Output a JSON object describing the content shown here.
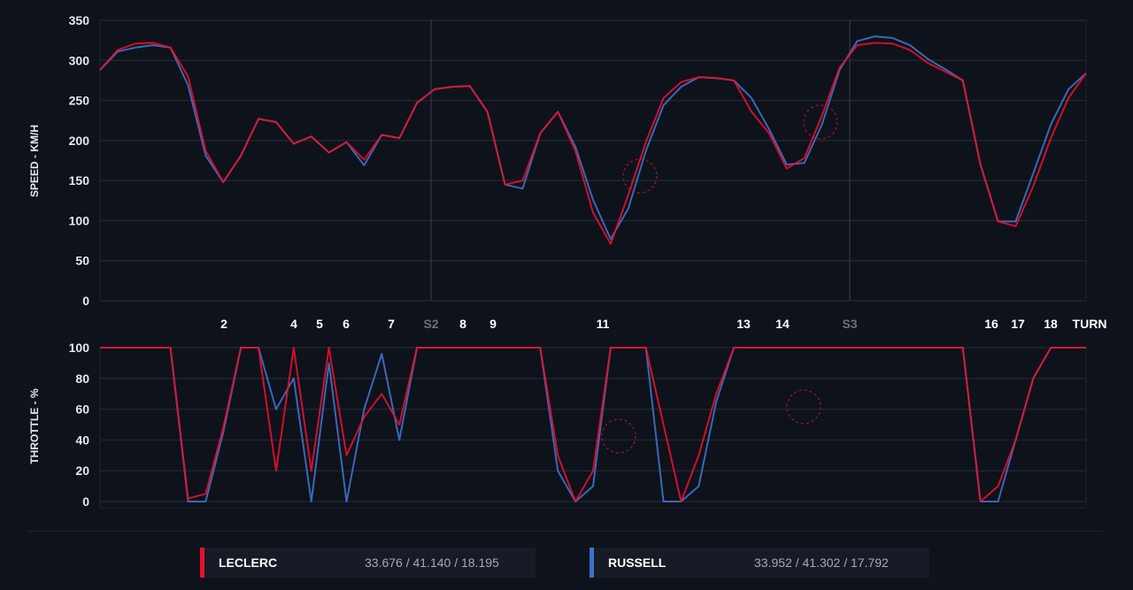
{
  "colors": {
    "leclerc": "#e8102e",
    "russell": "#3d72c9",
    "background": "#0e121b",
    "grid": "#1f2431"
  },
  "chart_data": [
    {
      "type": "line",
      "ylabel": "SPEED - KM/H",
      "ylim": [
        0,
        350
      ],
      "yticks": [
        0,
        50,
        100,
        150,
        200,
        250,
        300,
        350
      ],
      "grid": true,
      "series": [
        {
          "name": "LECLERC",
          "color": "#e8102e",
          "values": [
            288,
            313,
            321,
            322,
            316,
            280,
            187,
            148,
            181,
            227,
            223,
            196,
            205,
            185,
            198,
            176,
            207,
            203,
            247,
            264,
            267,
            268,
            236,
            145,
            150,
            209,
            236,
            187,
            110,
            71,
            132,
            198,
            253,
            273,
            279,
            278,
            275,
            236,
            209,
            165,
            178,
            231,
            291,
            319,
            322,
            321,
            313,
            297,
            286,
            275,
            170,
            99,
            93,
            143,
            203,
            253,
            284
          ]
        },
        {
          "name": "RUSSELL",
          "color": "#3d72c9",
          "values": [
            288,
            311,
            316,
            319,
            316,
            269,
            181,
            148,
            181,
            227,
            223,
            196,
            205,
            185,
            198,
            169,
            207,
            203,
            247,
            264,
            267,
            268,
            236,
            145,
            140,
            209,
            236,
            192,
            126,
            77,
            115,
            187,
            244,
            267,
            279,
            278,
            275,
            253,
            214,
            170,
            172,
            220,
            288,
            324,
            330,
            328,
            319,
            302,
            289,
            275,
            170,
            99,
            99,
            159,
            220,
            264,
            284
          ]
        }
      ],
      "annotations": [
        "dashed-circle",
        "dashed-circle"
      ]
    },
    {
      "type": "line",
      "ylabel": "THROTTLE - %",
      "ylim": [
        0,
        100
      ],
      "yticks": [
        0,
        20,
        40,
        60,
        80,
        100
      ],
      "grid": true,
      "series": [
        {
          "name": "LECLERC",
          "color": "#e8102e",
          "values": [
            100,
            100,
            100,
            100,
            100,
            2,
            5,
            48,
            100,
            100,
            20,
            100,
            20,
            100,
            30,
            55,
            70,
            50,
            100,
            100,
            100,
            100,
            100,
            100,
            100,
            100,
            30,
            0,
            20,
            100,
            100,
            100,
            50,
            0,
            30,
            70,
            100,
            100,
            100,
            100,
            100,
            100,
            100,
            100,
            100,
            100,
            100,
            100,
            100,
            100,
            0,
            10,
            40,
            80,
            100,
            100,
            100
          ]
        },
        {
          "name": "RUSSELL",
          "color": "#3d72c9",
          "values": [
            100,
            100,
            100,
            100,
            100,
            0,
            0,
            45,
            100,
            100,
            60,
            80,
            0,
            90,
            0,
            60,
            96,
            40,
            100,
            100,
            100,
            100,
            100,
            100,
            100,
            100,
            20,
            0,
            10,
            100,
            100,
            100,
            0,
            0,
            10,
            65,
            100,
            100,
            100,
            100,
            100,
            100,
            100,
            100,
            100,
            100,
            100,
            100,
            100,
            100,
            0,
            0,
            40,
            80,
            100,
            100,
            100
          ]
        }
      ],
      "annotations": [
        "dashed-circle",
        "dashed-circle"
      ]
    }
  ],
  "turns": [
    "2",
    "4",
    "5",
    "6",
    "7",
    "S2",
    "8",
    "9",
    "11",
    "13",
    "14",
    "S3",
    "16",
    "17",
    "18",
    "TURN"
  ],
  "legend": [
    {
      "driver": "LECLERC",
      "times": "33.676 / 41.140 / 18.195",
      "color": "#e8102e"
    },
    {
      "driver": "RUSSELL",
      "times": "33.952 / 41.302 / 17.792",
      "color": "#3d72c9"
    }
  ]
}
